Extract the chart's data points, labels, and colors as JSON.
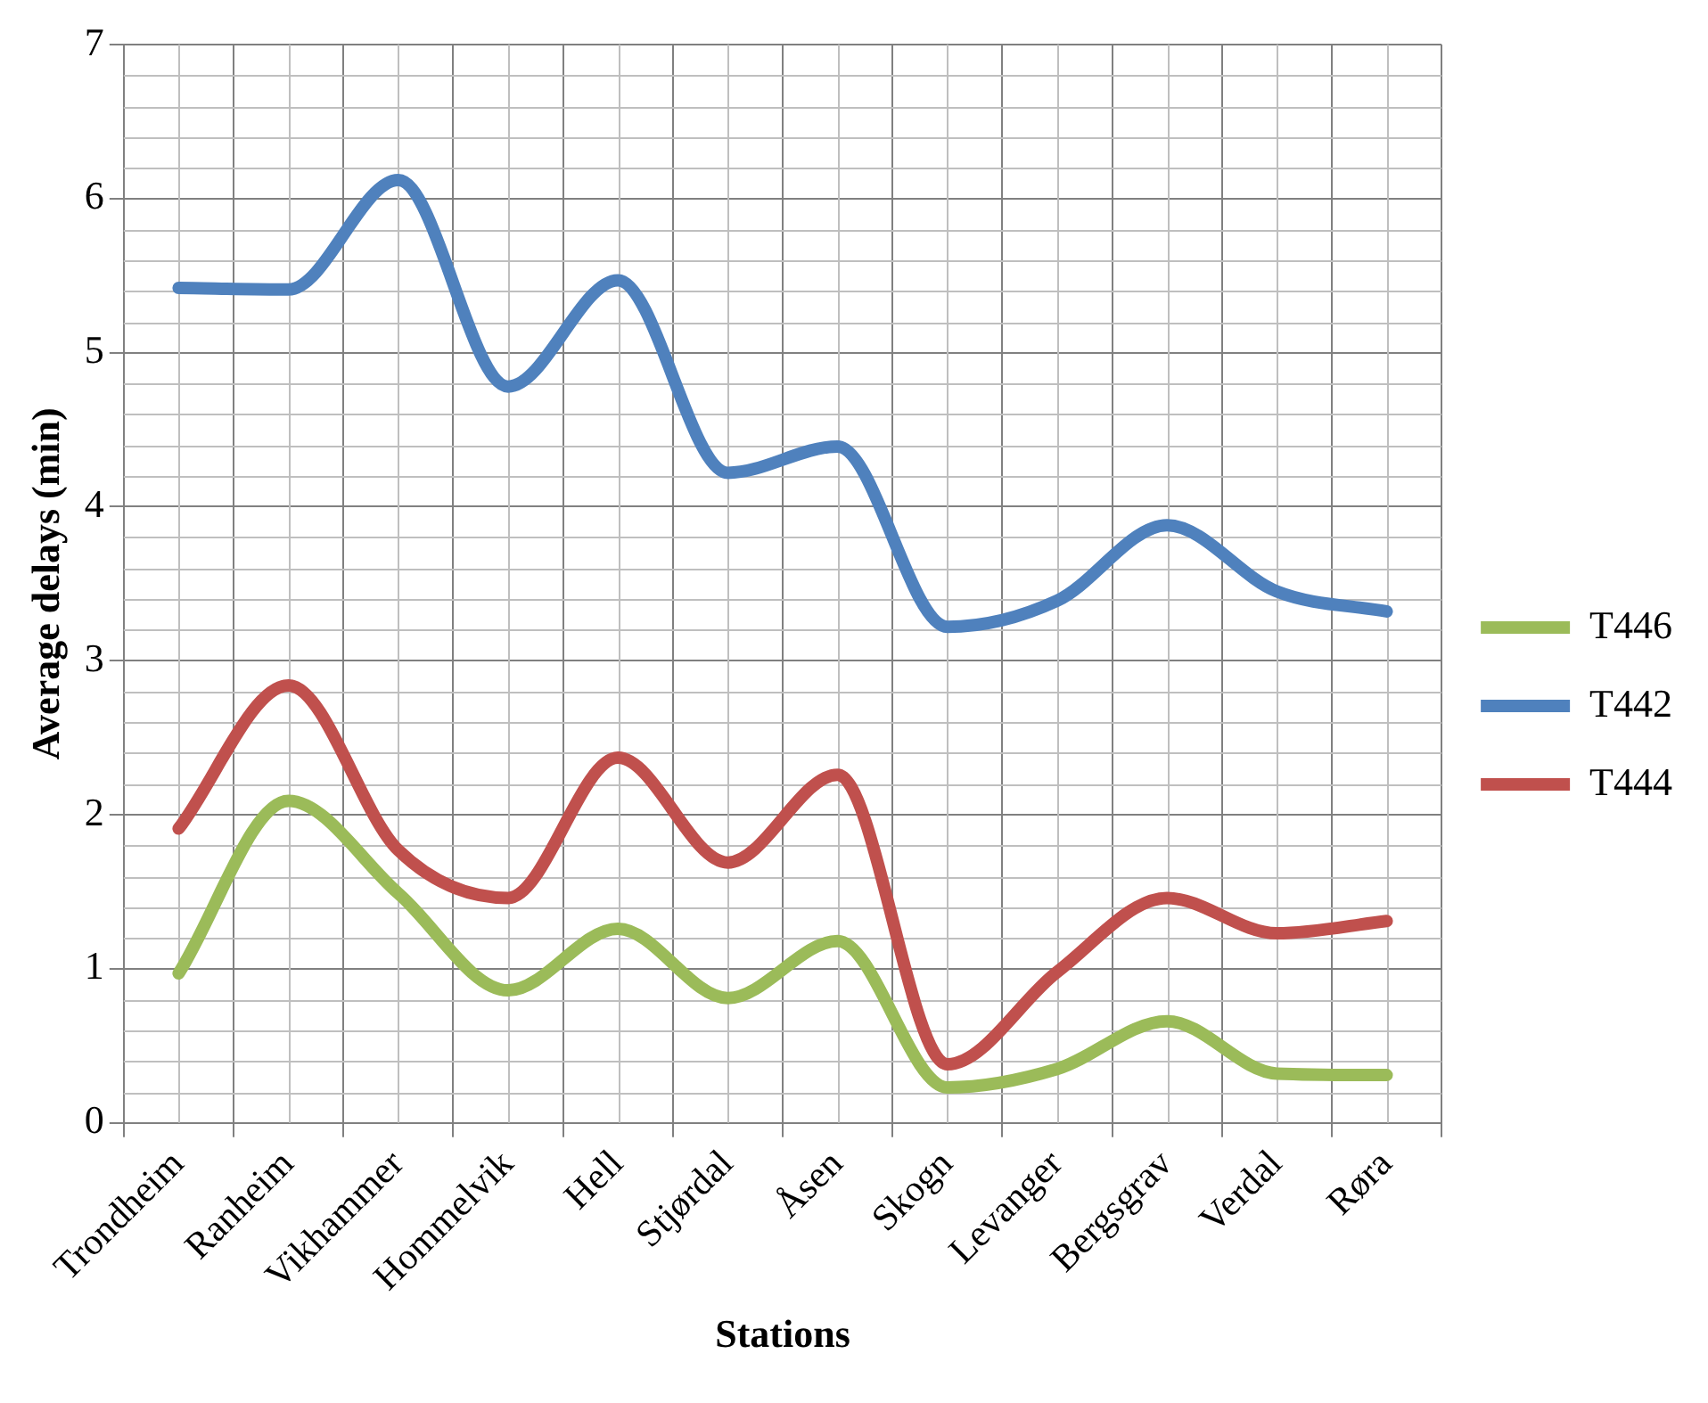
{
  "chart_data": {
    "type": "line",
    "xlabel": "Stations",
    "ylabel": "Average delays (min)",
    "categories": [
      "Trondheim",
      "Ranheim",
      "Vikhammer",
      "Hommelvik",
      "Hell",
      "Stjørdal",
      "Åsen",
      "Skogn",
      "Levanger",
      "Bergsgrav",
      "Verdal",
      "Røra"
    ],
    "series": [
      {
        "name": "T446",
        "color": "#9bbb59",
        "values": [
          0.97,
          2.09,
          1.49,
          0.86,
          1.26,
          0.81,
          1.18,
          0.23,
          0.35,
          0.66,
          0.32,
          0.31
        ]
      },
      {
        "name": "T442",
        "color": "#4f81bd",
        "values": [
          5.42,
          5.41,
          6.12,
          4.78,
          5.47,
          4.22,
          4.39,
          3.22,
          3.39,
          3.88,
          3.45,
          3.32
        ]
      },
      {
        "name": "T444",
        "color": "#c0504d",
        "values": [
          1.91,
          2.84,
          1.77,
          1.46,
          2.37,
          1.69,
          2.26,
          0.38,
          0.98,
          1.46,
          1.23,
          1.31
        ]
      }
    ],
    "ylim": [
      0,
      7
    ],
    "yticks": [
      0,
      1,
      2,
      3,
      4,
      5,
      6,
      7
    ],
    "grid": true,
    "legend": "right",
    "marker": "none",
    "line_style": "solid"
  }
}
